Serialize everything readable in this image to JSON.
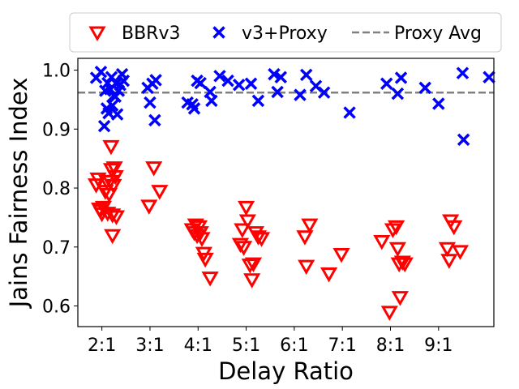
{
  "chart_data": {
    "type": "scatter",
    "xlabel": "Delay Ratio",
    "ylabel": "Jains Fairness Index",
    "xlim": [
      1.5,
      10.15
    ],
    "ylim": [
      0.565,
      1.02
    ],
    "x_ticks": [
      2,
      3,
      4,
      5,
      6,
      7,
      8,
      9
    ],
    "x_tick_labels": [
      "2:1",
      "3:1",
      "4:1",
      "5:1",
      "6:1",
      "7:1",
      "8:1",
      "9:1"
    ],
    "y_ticks": [
      0.6,
      0.7,
      0.8,
      0.9,
      1.0
    ],
    "y_tick_labels": [
      "0.6",
      "0.7",
      "0.8",
      "0.9",
      "1.0"
    ],
    "grid": false,
    "legend_position": "top",
    "series": [
      {
        "name": "BBRv3",
        "marker": "triangle-down-open",
        "color": "#ff0000",
        "points": [
          [
            1.88,
            0.806
          ],
          [
            1.92,
            0.816
          ],
          [
            1.95,
            0.765
          ],
          [
            1.97,
            0.762
          ],
          [
            2.0,
            0.757
          ],
          [
            2.03,
            0.768
          ],
          [
            2.07,
            0.795
          ],
          [
            2.1,
            0.812
          ],
          [
            2.12,
            0.758
          ],
          [
            2.15,
            0.79
          ],
          [
            2.17,
            0.812
          ],
          [
            2.19,
            0.871
          ],
          [
            2.2,
            0.832
          ],
          [
            2.22,
            0.755
          ],
          [
            2.24,
            0.805
          ],
          [
            2.26,
            0.835
          ],
          [
            2.28,
            0.82
          ],
          [
            2.3,
            0.752
          ],
          [
            2.22,
            0.72
          ],
          [
            2.98,
            0.77
          ],
          [
            3.08,
            0.835
          ],
          [
            3.2,
            0.795
          ],
          [
            3.88,
            0.73
          ],
          [
            3.92,
            0.725
          ],
          [
            3.95,
            0.738
          ],
          [
            3.98,
            0.72
          ],
          [
            4.02,
            0.735
          ],
          [
            4.05,
            0.725
          ],
          [
            4.08,
            0.715
          ],
          [
            4.12,
            0.69
          ],
          [
            4.15,
            0.68
          ],
          [
            4.25,
            0.648
          ],
          [
            4.88,
            0.705
          ],
          [
            4.92,
            0.73
          ],
          [
            4.95,
            0.7
          ],
          [
            5.0,
            0.768
          ],
          [
            5.03,
            0.745
          ],
          [
            5.08,
            0.67
          ],
          [
            5.12,
            0.645
          ],
          [
            5.15,
            0.672
          ],
          [
            5.2,
            0.725
          ],
          [
            5.25,
            0.718
          ],
          [
            5.32,
            0.715
          ],
          [
            6.22,
            0.718
          ],
          [
            6.25,
            0.668
          ],
          [
            6.32,
            0.738
          ],
          [
            6.72,
            0.655
          ],
          [
            6.98,
            0.688
          ],
          [
            7.82,
            0.71
          ],
          [
            7.98,
            0.59
          ],
          [
            8.05,
            0.73
          ],
          [
            8.12,
            0.735
          ],
          [
            8.15,
            0.698
          ],
          [
            8.18,
            0.672
          ],
          [
            8.2,
            0.615
          ],
          [
            8.25,
            0.675
          ],
          [
            8.3,
            0.672
          ],
          [
            9.18,
            0.698
          ],
          [
            9.22,
            0.678
          ],
          [
            9.25,
            0.745
          ],
          [
            9.32,
            0.735
          ],
          [
            9.45,
            0.693
          ]
        ]
      },
      {
        "name": "v3+Proxy",
        "marker": "x",
        "color": "#0000ff",
        "points": [
          [
            1.88,
            0.987
          ],
          [
            1.98,
            0.997
          ],
          [
            2.05,
            0.905
          ],
          [
            2.07,
            0.965
          ],
          [
            2.1,
            0.935
          ],
          [
            2.12,
            0.978
          ],
          [
            2.14,
            0.927
          ],
          [
            2.17,
            0.968
          ],
          [
            2.2,
            0.988
          ],
          [
            2.22,
            0.94
          ],
          [
            2.25,
            0.957
          ],
          [
            2.28,
            0.955
          ],
          [
            2.3,
            0.977
          ],
          [
            2.32,
            0.925
          ],
          [
            2.35,
            0.965
          ],
          [
            2.38,
            0.975
          ],
          [
            2.42,
            0.993
          ],
          [
            2.45,
            0.982
          ],
          [
            2.95,
            0.97
          ],
          [
            3.0,
            0.945
          ],
          [
            3.05,
            0.977
          ],
          [
            3.1,
            0.915
          ],
          [
            3.12,
            0.983
          ],
          [
            3.78,
            0.945
          ],
          [
            3.88,
            0.942
          ],
          [
            3.92,
            0.935
          ],
          [
            3.98,
            0.982
          ],
          [
            4.05,
            0.978
          ],
          [
            4.25,
            0.963
          ],
          [
            4.28,
            0.948
          ],
          [
            4.45,
            0.99
          ],
          [
            4.62,
            0.982
          ],
          [
            4.85,
            0.975
          ],
          [
            5.1,
            0.977
          ],
          [
            5.25,
            0.948
          ],
          [
            5.58,
            0.993
          ],
          [
            5.65,
            0.963
          ],
          [
            5.72,
            0.988
          ],
          [
            6.12,
            0.958
          ],
          [
            6.25,
            0.992
          ],
          [
            6.45,
            0.973
          ],
          [
            6.62,
            0.962
          ],
          [
            7.15,
            0.928
          ],
          [
            7.92,
            0.977
          ],
          [
            8.15,
            0.96
          ],
          [
            8.22,
            0.987
          ],
          [
            8.72,
            0.97
          ],
          [
            9.0,
            0.943
          ],
          [
            9.5,
            0.995
          ],
          [
            9.52,
            0.882
          ],
          [
            10.05,
            0.988
          ]
        ]
      },
      {
        "name": "Proxy Avg",
        "style": "dashed-line",
        "color": "#808080",
        "y": 0.962
      }
    ]
  }
}
